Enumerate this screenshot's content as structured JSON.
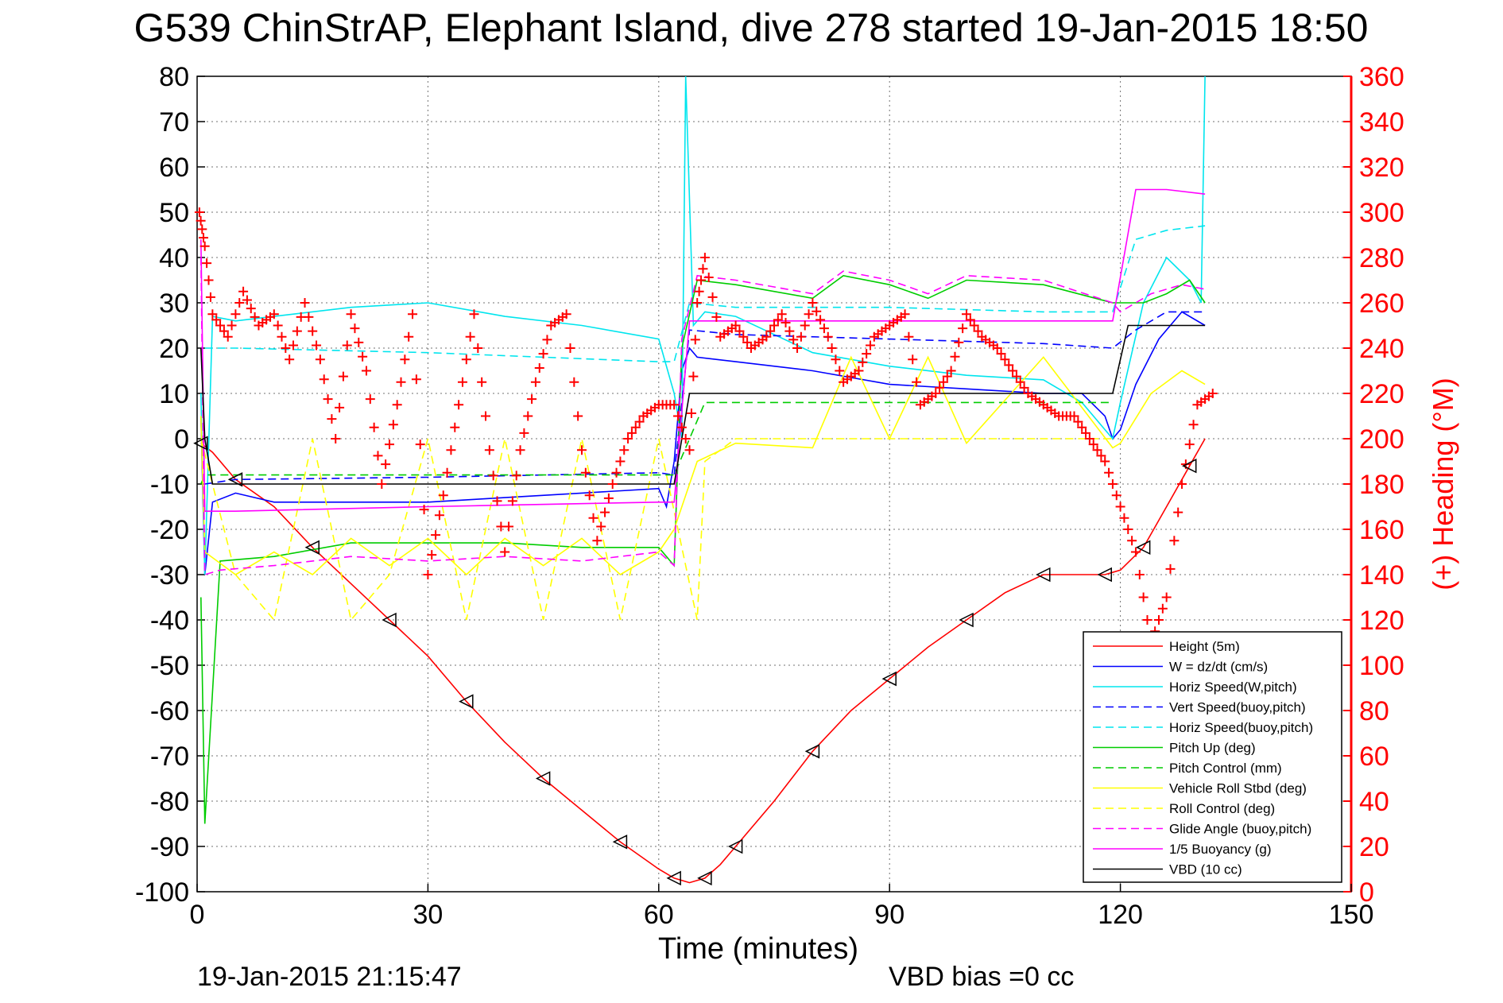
{
  "chart_data": {
    "type": "line",
    "title": "G539 ChinStrAP, Elephant Island, dive 278 started 19-Jan-2015 18:50",
    "xlabel": "Time (minutes)",
    "ylabel": "",
    "y2label": "(+) Heading (°M)",
    "xlim": [
      0,
      150
    ],
    "ylim": [
      -100,
      80
    ],
    "y2lim": [
      0,
      360
    ],
    "x_ticks": [
      "0",
      "30",
      "60",
      "90",
      "120",
      "150"
    ],
    "y_ticks": [
      "80",
      "70",
      "60",
      "50",
      "40",
      "30",
      "20",
      "10",
      "0",
      "-10",
      "-20",
      "-30",
      "-40",
      "-50",
      "-60",
      "-70",
      "-80",
      "-90",
      "-100"
    ],
    "y2_ticks": [
      "360",
      "340",
      "320",
      "300",
      "280",
      "260",
      "240",
      "220",
      "200",
      "180",
      "160",
      "140",
      "120",
      "100",
      "80",
      "60",
      "40",
      "20",
      "0"
    ],
    "grid": true,
    "legend_position": "bottom-right",
    "footer_left": "19-Jan-2015 21:15:47",
    "footer_right": "VBD bias =0 cc",
    "colors": {
      "red": "#ff0000",
      "blue": "#0000ff",
      "cyan": "#00e5ee",
      "green": "#00cc00",
      "yellow": "#ffff00",
      "magenta": "#ff00ff",
      "black": "#000000"
    },
    "series": [
      {
        "name": "Height (5m)",
        "color": "#ff0000",
        "dash": "solid",
        "x": [
          0.5,
          2,
          5,
          10,
          15,
          20,
          25,
          30,
          35,
          40,
          45,
          50,
          55,
          60,
          62,
          64,
          66,
          68,
          70,
          75,
          80,
          85,
          90,
          95,
          100,
          105,
          110,
          115,
          118,
          120,
          123,
          126,
          129,
          131
        ],
        "y": [
          -1,
          -3,
          -9,
          -15,
          -24,
          -32,
          -40,
          -48,
          -58,
          -67,
          -75,
          -82,
          -89,
          -95,
          -97,
          -98,
          -97,
          -94,
          -90,
          -80,
          -69,
          -60,
          -53,
          -46,
          -40,
          -34,
          -30,
          -30,
          -30,
          -29,
          -24,
          -15,
          -6,
          0
        ]
      },
      {
        "name": "W = dz/dt (cm/s)",
        "color": "#0000ff",
        "dash": "solid",
        "x": [
          0.5,
          1,
          2,
          5,
          10,
          20,
          30,
          40,
          50,
          60,
          61,
          62,
          63,
          64,
          65,
          70,
          80,
          90,
          100,
          110,
          115,
          118,
          119,
          120,
          122,
          125,
          128,
          131
        ],
        "y": [
          5,
          -30,
          -14,
          -12,
          -14,
          -14,
          -14,
          -13,
          -12,
          -11,
          -15,
          -5,
          15,
          20,
          18,
          17,
          15,
          12,
          11,
          10,
          10,
          5,
          0,
          2,
          12,
          22,
          28,
          25
        ]
      },
      {
        "name": "Horiz Speed(W,pitch)",
        "color": "#00e5ee",
        "dash": "solid",
        "x": [
          0.5,
          1,
          2,
          5,
          10,
          20,
          30,
          40,
          50,
          60,
          62,
          63,
          63.5,
          64.5,
          66,
          70,
          80,
          90,
          100,
          110,
          115,
          118,
          119,
          120,
          123,
          126,
          129,
          130.5,
          131
        ],
        "y": [
          10,
          -30,
          27,
          26,
          27,
          29,
          30,
          27,
          25,
          22,
          10,
          0,
          80,
          25,
          28,
          27,
          19,
          16,
          14,
          13,
          8,
          2,
          0,
          8,
          30,
          40,
          35,
          30,
          80
        ]
      },
      {
        "name": "Vert Speed(buoy,pitch)",
        "color": "#0000ff",
        "dash": "dashed",
        "x": [
          1,
          5,
          30,
          60,
          62,
          64,
          70,
          90,
          110,
          119,
          122,
          126,
          131
        ],
        "y": [
          -10,
          -9,
          -8.5,
          -7.5,
          -8,
          24,
          23,
          22,
          21,
          20,
          24,
          28,
          28
        ]
      },
      {
        "name": "Horiz Speed(buoy,pitch)",
        "color": "#00e5ee",
        "dash": "dashed",
        "x": [
          1,
          5,
          30,
          60,
          62,
          64,
          70,
          90,
          110,
          119,
          122,
          126,
          131
        ],
        "y": [
          20,
          20,
          19,
          17,
          17,
          30,
          29,
          29,
          28,
          28,
          44,
          46,
          47
        ]
      },
      {
        "name": "Pitch Up (deg)",
        "color": "#00cc00",
        "dash": "solid",
        "x": [
          0.5,
          1,
          3,
          10,
          20,
          30,
          40,
          50,
          60,
          62,
          63,
          65,
          70,
          80,
          84,
          90,
          95,
          100,
          110,
          119,
          120,
          123,
          126,
          129,
          131
        ],
        "y": [
          -35,
          -85,
          -27,
          -26,
          -23,
          -23,
          -23,
          -24,
          -24,
          -28,
          20,
          35,
          34,
          31,
          36,
          34,
          31,
          35,
          34,
          30,
          30,
          30,
          32,
          35,
          30
        ]
      },
      {
        "name": "Pitch Control (mm)",
        "color": "#00cc00",
        "dash": "dashed",
        "x": [
          0.5,
          1,
          5,
          30,
          60,
          62,
          66,
          90,
          119
        ],
        "y": [
          -10,
          -8,
          -8,
          -8,
          -8,
          -8,
          8,
          8,
          8
        ]
      },
      {
        "name": "Vehicle Roll Stbd (deg)",
        "color": "#ffff00",
        "dash": "solid",
        "x": [
          0.5,
          1,
          5,
          10,
          15,
          20,
          25,
          30,
          35,
          40,
          45,
          50,
          55,
          60,
          62,
          65,
          70,
          80,
          85,
          90,
          95,
          100,
          110,
          119,
          120,
          124,
          128,
          131
        ],
        "y": [
          5,
          -25,
          -30,
          -25,
          -30,
          -22,
          -28,
          -22,
          -30,
          -22,
          -28,
          -22,
          -30,
          -25,
          -20,
          -5,
          -1,
          -2,
          18,
          0,
          18,
          -1,
          18,
          -2,
          -1,
          10,
          15,
          12
        ]
      },
      {
        "name": "Roll Control (deg)",
        "color": "#ffff00",
        "dash": "dashed",
        "x": [
          0.5,
          5,
          10,
          15,
          20,
          25,
          30,
          35,
          40,
          45,
          50,
          55,
          60,
          65,
          66,
          70,
          119
        ],
        "y": [
          0,
          -30,
          -40,
          0,
          -40,
          -30,
          0,
          -40,
          0,
          -40,
          0,
          -40,
          0,
          -40,
          -5,
          0,
          0
        ]
      },
      {
        "name": "Glide Angle (buoy,pitch)",
        "color": "#ff00ff",
        "dash": "dashed",
        "x": [
          0.5,
          1,
          3,
          10,
          20,
          30,
          40,
          50,
          60,
          62,
          63,
          65,
          70,
          80,
          84,
          90,
          95,
          100,
          110,
          119,
          120,
          124,
          128,
          131
        ],
        "y": [
          40,
          -30,
          -29,
          -28,
          -26,
          -27,
          -26,
          -27,
          -25,
          -28,
          22,
          36,
          35,
          32,
          37,
          35,
          32,
          36,
          35,
          30,
          28,
          32,
          34,
          33
        ]
      },
      {
        "name": "1/5 Buoyancy (g)",
        "color": "#ff00ff",
        "dash": "solid",
        "x": [
          0.5,
          1,
          5,
          30,
          60,
          62,
          64,
          90,
          119,
          122,
          126,
          131
        ],
        "y": [
          44,
          -16,
          -16,
          -15,
          -14,
          -14,
          26,
          26,
          26,
          55,
          55,
          54
        ]
      },
      {
        "name": "VBD (10 cc)",
        "color": "#000000",
        "dash": "solid",
        "x": [
          0.5,
          1,
          2,
          60,
          62,
          64,
          119,
          121,
          125,
          131
        ],
        "y": [
          20,
          0,
          -10,
          -10,
          -10,
          10,
          10,
          25,
          25,
          25
        ]
      },
      {
        "name": "(+) Heading (°M)",
        "axis": "right",
        "color": "#ff0000",
        "marker": "+",
        "x": [
          0.3,
          1,
          2,
          4,
          6,
          8,
          10,
          12,
          14,
          16,
          18,
          20,
          22,
          24,
          26,
          28,
          30,
          32,
          34,
          36,
          38,
          40,
          42,
          44,
          46,
          48,
          50,
          52,
          54,
          56,
          58,
          60,
          62,
          64,
          65,
          66,
          68,
          70,
          72,
          74,
          76,
          78,
          80,
          82,
          84,
          86,
          88,
          90,
          92,
          94,
          96,
          98,
          100,
          102,
          104,
          106,
          108,
          110,
          112,
          114,
          116,
          118,
          120,
          122,
          124,
          126,
          128,
          130,
          132
        ],
        "y": [
          300,
          285,
          255,
          245,
          265,
          250,
          255,
          235,
          260,
          235,
          200,
          255,
          230,
          180,
          215,
          255,
          140,
          175,
          215,
          255,
          195,
          150,
          195,
          225,
          250,
          255,
          195,
          155,
          180,
          200,
          210,
          215,
          215,
          195,
          260,
          280,
          245,
          250,
          240,
          245,
          255,
          240,
          260,
          245,
          225,
          230,
          245,
          250,
          255,
          215,
          220,
          230,
          255,
          245,
          240,
          230,
          220,
          215,
          210,
          210,
          200,
          190,
          170,
          150,
          110,
          130,
          180,
          215,
          220
        ]
      }
    ]
  }
}
